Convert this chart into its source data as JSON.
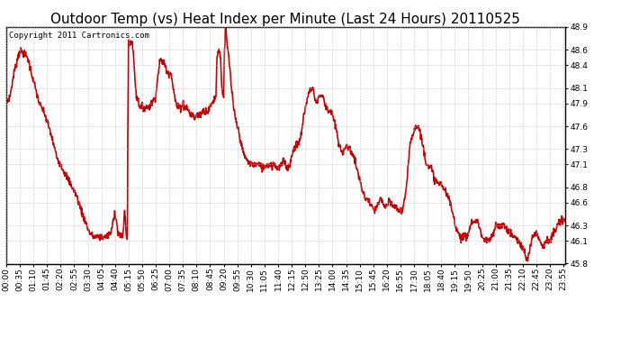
{
  "title": "Outdoor Temp (vs) Heat Index per Minute (Last 24 Hours) 20110525",
  "copyright": "Copyright 2011 Cartronics.com",
  "line_color": "#cc0000",
  "background_color": "#ffffff",
  "plot_bg_color": "#ffffff",
  "grid_color": "#bbbbbb",
  "ylim": [
    45.8,
    48.9
  ],
  "yticks": [
    45.8,
    46.1,
    46.3,
    46.6,
    46.8,
    47.1,
    47.3,
    47.6,
    47.9,
    48.1,
    48.4,
    48.6,
    48.9
  ],
  "xtick_labels": [
    "00:00",
    "00:35",
    "01:10",
    "01:45",
    "02:20",
    "02:55",
    "03:30",
    "04:05",
    "04:40",
    "05:15",
    "05:50",
    "06:25",
    "07:00",
    "07:35",
    "08:10",
    "08:45",
    "09:20",
    "09:55",
    "10:30",
    "11:05",
    "11:40",
    "12:15",
    "12:50",
    "13:25",
    "14:00",
    "14:35",
    "15:10",
    "15:45",
    "16:20",
    "16:55",
    "17:30",
    "18:05",
    "18:40",
    "19:15",
    "19:50",
    "20:25",
    "21:00",
    "21:35",
    "22:10",
    "22:45",
    "23:20",
    "23:55"
  ],
  "line_width": 1.2,
  "title_fontsize": 11,
  "tick_fontsize": 6.5,
  "copyright_fontsize": 6.5,
  "control_points": [
    [
      0,
      47.9
    ],
    [
      10,
      48.0
    ],
    [
      20,
      48.3
    ],
    [
      35,
      48.6
    ],
    [
      45,
      48.55
    ],
    [
      55,
      48.5
    ],
    [
      70,
      48.2
    ],
    [
      85,
      47.9
    ],
    [
      100,
      47.75
    ],
    [
      115,
      47.5
    ],
    [
      130,
      47.2
    ],
    [
      150,
      47.0
    ],
    [
      165,
      46.85
    ],
    [
      180,
      46.7
    ],
    [
      200,
      46.4
    ],
    [
      215,
      46.2
    ],
    [
      225,
      46.15
    ],
    [
      240,
      46.15
    ],
    [
      255,
      46.15
    ],
    [
      270,
      46.2
    ],
    [
      280,
      46.5
    ],
    [
      288,
      46.2
    ],
    [
      295,
      46.15
    ],
    [
      300,
      46.15
    ],
    [
      305,
      46.5
    ],
    [
      310,
      46.15
    ],
    [
      312,
      46.15
    ],
    [
      313,
      47.5
    ],
    [
      315,
      48.65
    ],
    [
      320,
      48.7
    ],
    [
      325,
      48.7
    ],
    [
      335,
      48.0
    ],
    [
      345,
      47.85
    ],
    [
      355,
      47.85
    ],
    [
      365,
      47.85
    ],
    [
      375,
      47.9
    ],
    [
      385,
      48.0
    ],
    [
      395,
      48.45
    ],
    [
      405,
      48.45
    ],
    [
      415,
      48.3
    ],
    [
      425,
      48.3
    ],
    [
      430,
      48.1
    ],
    [
      435,
      47.95
    ],
    [
      440,
      47.85
    ],
    [
      445,
      47.85
    ],
    [
      450,
      47.85
    ],
    [
      455,
      47.9
    ],
    [
      460,
      47.85
    ],
    [
      465,
      47.85
    ],
    [
      470,
      47.8
    ],
    [
      475,
      47.75
    ],
    [
      480,
      47.75
    ],
    [
      485,
      47.7
    ],
    [
      490,
      47.75
    ],
    [
      495,
      47.75
    ],
    [
      500,
      47.75
    ],
    [
      505,
      47.8
    ],
    [
      510,
      47.8
    ],
    [
      515,
      47.8
    ],
    [
      520,
      47.8
    ],
    [
      525,
      47.85
    ],
    [
      530,
      47.9
    ],
    [
      535,
      47.95
    ],
    [
      540,
      48.0
    ],
    [
      543,
      48.55
    ],
    [
      548,
      48.6
    ],
    [
      552,
      48.5
    ],
    [
      555,
      48.1
    ],
    [
      558,
      48.05
    ],
    [
      560,
      47.95
    ],
    [
      562,
      48.6
    ],
    [
      565,
      48.9
    ],
    [
      568,
      48.7
    ],
    [
      572,
      48.55
    ],
    [
      575,
      48.4
    ],
    [
      580,
      48.1
    ],
    [
      585,
      47.85
    ],
    [
      590,
      47.7
    ],
    [
      595,
      47.6
    ],
    [
      600,
      47.5
    ],
    [
      610,
      47.25
    ],
    [
      620,
      47.15
    ],
    [
      630,
      47.1
    ],
    [
      640,
      47.1
    ],
    [
      650,
      47.1
    ],
    [
      660,
      47.05
    ],
    [
      670,
      47.1
    ],
    [
      680,
      47.1
    ],
    [
      690,
      47.1
    ],
    [
      700,
      47.05
    ],
    [
      710,
      47.1
    ],
    [
      715,
      47.15
    ],
    [
      720,
      47.1
    ],
    [
      725,
      47.05
    ],
    [
      730,
      47.1
    ],
    [
      735,
      47.2
    ],
    [
      740,
      47.3
    ],
    [
      745,
      47.35
    ],
    [
      750,
      47.35
    ],
    [
      755,
      47.4
    ],
    [
      760,
      47.5
    ],
    [
      765,
      47.7
    ],
    [
      770,
      47.85
    ],
    [
      775,
      47.95
    ],
    [
      780,
      48.05
    ],
    [
      785,
      48.1
    ],
    [
      790,
      48.1
    ],
    [
      795,
      47.95
    ],
    [
      800,
      47.9
    ],
    [
      805,
      48.0
    ],
    [
      810,
      48.0
    ],
    [
      815,
      48.0
    ],
    [
      820,
      47.9
    ],
    [
      825,
      47.85
    ],
    [
      830,
      47.8
    ],
    [
      835,
      47.8
    ],
    [
      840,
      47.75
    ],
    [
      845,
      47.65
    ],
    [
      850,
      47.55
    ],
    [
      855,
      47.4
    ],
    [
      860,
      47.3
    ],
    [
      865,
      47.25
    ],
    [
      870,
      47.3
    ],
    [
      875,
      47.35
    ],
    [
      880,
      47.3
    ],
    [
      885,
      47.3
    ],
    [
      890,
      47.25
    ],
    [
      895,
      47.2
    ],
    [
      900,
      47.1
    ],
    [
      905,
      47.0
    ],
    [
      910,
      46.9
    ],
    [
      915,
      46.8
    ],
    [
      920,
      46.7
    ],
    [
      925,
      46.65
    ],
    [
      930,
      46.65
    ],
    [
      935,
      46.6
    ],
    [
      940,
      46.55
    ],
    [
      945,
      46.5
    ],
    [
      950,
      46.5
    ],
    [
      955,
      46.55
    ],
    [
      960,
      46.6
    ],
    [
      965,
      46.65
    ],
    [
      970,
      46.6
    ],
    [
      975,
      46.55
    ],
    [
      980,
      46.55
    ],
    [
      985,
      46.6
    ],
    [
      990,
      46.6
    ],
    [
      995,
      46.55
    ],
    [
      1000,
      46.55
    ],
    [
      1010,
      46.5
    ],
    [
      1020,
      46.5
    ],
    [
      1030,
      46.75
    ],
    [
      1040,
      47.4
    ],
    [
      1050,
      47.55
    ],
    [
      1055,
      47.6
    ],
    [
      1060,
      47.6
    ],
    [
      1065,
      47.55
    ],
    [
      1070,
      47.4
    ],
    [
      1075,
      47.3
    ],
    [
      1080,
      47.15
    ],
    [
      1085,
      47.1
    ],
    [
      1090,
      47.05
    ],
    [
      1095,
      47.05
    ],
    [
      1100,
      46.95
    ],
    [
      1105,
      46.9
    ],
    [
      1110,
      46.85
    ],
    [
      1115,
      46.85
    ],
    [
      1120,
      46.85
    ],
    [
      1125,
      46.8
    ],
    [
      1130,
      46.75
    ],
    [
      1135,
      46.7
    ],
    [
      1140,
      46.65
    ],
    [
      1145,
      46.55
    ],
    [
      1150,
      46.45
    ],
    [
      1155,
      46.35
    ],
    [
      1160,
      46.25
    ],
    [
      1165,
      46.2
    ],
    [
      1170,
      46.15
    ],
    [
      1175,
      46.15
    ],
    [
      1180,
      46.15
    ],
    [
      1185,
      46.15
    ],
    [
      1190,
      46.2
    ],
    [
      1195,
      46.3
    ],
    [
      1200,
      46.35
    ],
    [
      1205,
      46.35
    ],
    [
      1210,
      46.35
    ],
    [
      1215,
      46.35
    ],
    [
      1220,
      46.25
    ],
    [
      1225,
      46.15
    ],
    [
      1230,
      46.1
    ],
    [
      1235,
      46.1
    ],
    [
      1240,
      46.1
    ],
    [
      1245,
      46.1
    ],
    [
      1250,
      46.15
    ],
    [
      1255,
      46.2
    ],
    [
      1260,
      46.3
    ],
    [
      1265,
      46.3
    ],
    [
      1270,
      46.3
    ],
    [
      1275,
      46.3
    ],
    [
      1280,
      46.3
    ],
    [
      1285,
      46.3
    ],
    [
      1290,
      46.25
    ],
    [
      1295,
      46.2
    ],
    [
      1300,
      46.2
    ],
    [
      1305,
      46.15
    ],
    [
      1310,
      46.15
    ],
    [
      1315,
      46.1
    ],
    [
      1320,
      46.1
    ],
    [
      1325,
      46.05
    ],
    [
      1330,
      46.0
    ],
    [
      1335,
      45.95
    ],
    [
      1340,
      45.85
    ],
    [
      1343,
      45.82
    ],
    [
      1345,
      45.9
    ],
    [
      1350,
      46.05
    ],
    [
      1355,
      46.15
    ],
    [
      1360,
      46.2
    ],
    [
      1365,
      46.2
    ],
    [
      1370,
      46.15
    ],
    [
      1375,
      46.1
    ],
    [
      1380,
      46.05
    ],
    [
      1385,
      46.05
    ],
    [
      1390,
      46.1
    ],
    [
      1395,
      46.1
    ],
    [
      1400,
      46.1
    ],
    [
      1405,
      46.15
    ],
    [
      1410,
      46.2
    ],
    [
      1415,
      46.25
    ],
    [
      1420,
      46.3
    ],
    [
      1425,
      46.35
    ],
    [
      1430,
      46.35
    ],
    [
      1435,
      46.35
    ],
    [
      1439,
      46.4
    ]
  ]
}
